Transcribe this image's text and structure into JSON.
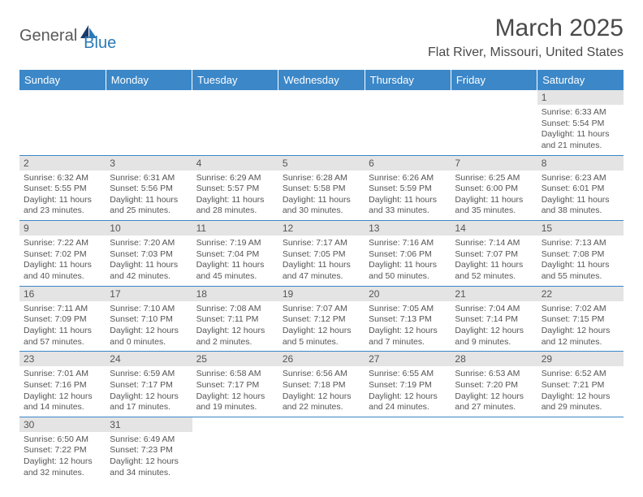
{
  "logo": {
    "part1": "General",
    "part2": "Blue"
  },
  "title": "March 2025",
  "location": "Flat River, Missouri, United States",
  "colors": {
    "header_bg": "#3b87c8",
    "header_text": "#ffffff",
    "daynum_bg": "#e4e4e4",
    "cell_border": "#3b87c8",
    "text": "#555555",
    "logo_accent": "#2a7ab8"
  },
  "day_headers": [
    "Sunday",
    "Monday",
    "Tuesday",
    "Wednesday",
    "Thursday",
    "Friday",
    "Saturday"
  ],
  "weeks": [
    [
      null,
      null,
      null,
      null,
      null,
      null,
      {
        "n": "1",
        "sunrise": "Sunrise: 6:33 AM",
        "sunset": "Sunset: 5:54 PM",
        "d1": "Daylight: 11 hours",
        "d2": "and 21 minutes."
      }
    ],
    [
      {
        "n": "2",
        "sunrise": "Sunrise: 6:32 AM",
        "sunset": "Sunset: 5:55 PM",
        "d1": "Daylight: 11 hours",
        "d2": "and 23 minutes."
      },
      {
        "n": "3",
        "sunrise": "Sunrise: 6:31 AM",
        "sunset": "Sunset: 5:56 PM",
        "d1": "Daylight: 11 hours",
        "d2": "and 25 minutes."
      },
      {
        "n": "4",
        "sunrise": "Sunrise: 6:29 AM",
        "sunset": "Sunset: 5:57 PM",
        "d1": "Daylight: 11 hours",
        "d2": "and 28 minutes."
      },
      {
        "n": "5",
        "sunrise": "Sunrise: 6:28 AM",
        "sunset": "Sunset: 5:58 PM",
        "d1": "Daylight: 11 hours",
        "d2": "and 30 minutes."
      },
      {
        "n": "6",
        "sunrise": "Sunrise: 6:26 AM",
        "sunset": "Sunset: 5:59 PM",
        "d1": "Daylight: 11 hours",
        "d2": "and 33 minutes."
      },
      {
        "n": "7",
        "sunrise": "Sunrise: 6:25 AM",
        "sunset": "Sunset: 6:00 PM",
        "d1": "Daylight: 11 hours",
        "d2": "and 35 minutes."
      },
      {
        "n": "8",
        "sunrise": "Sunrise: 6:23 AM",
        "sunset": "Sunset: 6:01 PM",
        "d1": "Daylight: 11 hours",
        "d2": "and 38 minutes."
      }
    ],
    [
      {
        "n": "9",
        "sunrise": "Sunrise: 7:22 AM",
        "sunset": "Sunset: 7:02 PM",
        "d1": "Daylight: 11 hours",
        "d2": "and 40 minutes."
      },
      {
        "n": "10",
        "sunrise": "Sunrise: 7:20 AM",
        "sunset": "Sunset: 7:03 PM",
        "d1": "Daylight: 11 hours",
        "d2": "and 42 minutes."
      },
      {
        "n": "11",
        "sunrise": "Sunrise: 7:19 AM",
        "sunset": "Sunset: 7:04 PM",
        "d1": "Daylight: 11 hours",
        "d2": "and 45 minutes."
      },
      {
        "n": "12",
        "sunrise": "Sunrise: 7:17 AM",
        "sunset": "Sunset: 7:05 PM",
        "d1": "Daylight: 11 hours",
        "d2": "and 47 minutes."
      },
      {
        "n": "13",
        "sunrise": "Sunrise: 7:16 AM",
        "sunset": "Sunset: 7:06 PM",
        "d1": "Daylight: 11 hours",
        "d2": "and 50 minutes."
      },
      {
        "n": "14",
        "sunrise": "Sunrise: 7:14 AM",
        "sunset": "Sunset: 7:07 PM",
        "d1": "Daylight: 11 hours",
        "d2": "and 52 minutes."
      },
      {
        "n": "15",
        "sunrise": "Sunrise: 7:13 AM",
        "sunset": "Sunset: 7:08 PM",
        "d1": "Daylight: 11 hours",
        "d2": "and 55 minutes."
      }
    ],
    [
      {
        "n": "16",
        "sunrise": "Sunrise: 7:11 AM",
        "sunset": "Sunset: 7:09 PM",
        "d1": "Daylight: 11 hours",
        "d2": "and 57 minutes."
      },
      {
        "n": "17",
        "sunrise": "Sunrise: 7:10 AM",
        "sunset": "Sunset: 7:10 PM",
        "d1": "Daylight: 12 hours",
        "d2": "and 0 minutes."
      },
      {
        "n": "18",
        "sunrise": "Sunrise: 7:08 AM",
        "sunset": "Sunset: 7:11 PM",
        "d1": "Daylight: 12 hours",
        "d2": "and 2 minutes."
      },
      {
        "n": "19",
        "sunrise": "Sunrise: 7:07 AM",
        "sunset": "Sunset: 7:12 PM",
        "d1": "Daylight: 12 hours",
        "d2": "and 5 minutes."
      },
      {
        "n": "20",
        "sunrise": "Sunrise: 7:05 AM",
        "sunset": "Sunset: 7:13 PM",
        "d1": "Daylight: 12 hours",
        "d2": "and 7 minutes."
      },
      {
        "n": "21",
        "sunrise": "Sunrise: 7:04 AM",
        "sunset": "Sunset: 7:14 PM",
        "d1": "Daylight: 12 hours",
        "d2": "and 9 minutes."
      },
      {
        "n": "22",
        "sunrise": "Sunrise: 7:02 AM",
        "sunset": "Sunset: 7:15 PM",
        "d1": "Daylight: 12 hours",
        "d2": "and 12 minutes."
      }
    ],
    [
      {
        "n": "23",
        "sunrise": "Sunrise: 7:01 AM",
        "sunset": "Sunset: 7:16 PM",
        "d1": "Daylight: 12 hours",
        "d2": "and 14 minutes."
      },
      {
        "n": "24",
        "sunrise": "Sunrise: 6:59 AM",
        "sunset": "Sunset: 7:17 PM",
        "d1": "Daylight: 12 hours",
        "d2": "and 17 minutes."
      },
      {
        "n": "25",
        "sunrise": "Sunrise: 6:58 AM",
        "sunset": "Sunset: 7:17 PM",
        "d1": "Daylight: 12 hours",
        "d2": "and 19 minutes."
      },
      {
        "n": "26",
        "sunrise": "Sunrise: 6:56 AM",
        "sunset": "Sunset: 7:18 PM",
        "d1": "Daylight: 12 hours",
        "d2": "and 22 minutes."
      },
      {
        "n": "27",
        "sunrise": "Sunrise: 6:55 AM",
        "sunset": "Sunset: 7:19 PM",
        "d1": "Daylight: 12 hours",
        "d2": "and 24 minutes."
      },
      {
        "n": "28",
        "sunrise": "Sunrise: 6:53 AM",
        "sunset": "Sunset: 7:20 PM",
        "d1": "Daylight: 12 hours",
        "d2": "and 27 minutes."
      },
      {
        "n": "29",
        "sunrise": "Sunrise: 6:52 AM",
        "sunset": "Sunset: 7:21 PM",
        "d1": "Daylight: 12 hours",
        "d2": "and 29 minutes."
      }
    ],
    [
      {
        "n": "30",
        "sunrise": "Sunrise: 6:50 AM",
        "sunset": "Sunset: 7:22 PM",
        "d1": "Daylight: 12 hours",
        "d2": "and 32 minutes."
      },
      {
        "n": "31",
        "sunrise": "Sunrise: 6:49 AM",
        "sunset": "Sunset: 7:23 PM",
        "d1": "Daylight: 12 hours",
        "d2": "and 34 minutes."
      },
      null,
      null,
      null,
      null,
      null
    ]
  ]
}
